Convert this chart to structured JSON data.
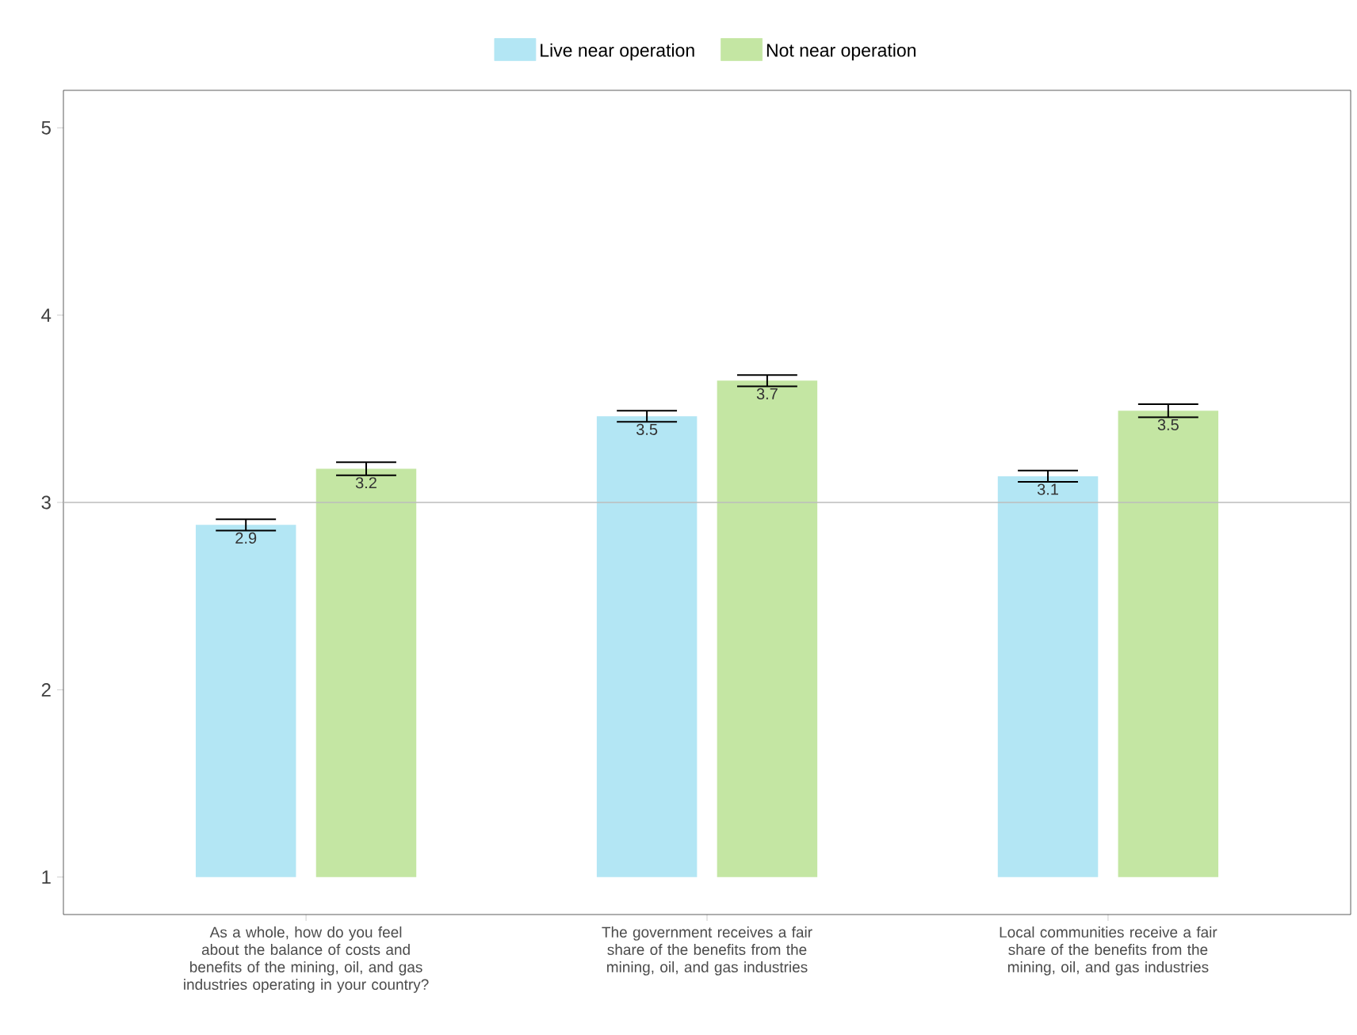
{
  "chart_data": {
    "type": "bar",
    "categories": [
      "As a whole, how do you feel about the balance of costs and benefits of the mining, oil, and gas industries operating in your country?",
      "The government receives a fair share of the benefits from the mining, oil, and gas industries",
      "Local communities receive a fair share of the benefits from the mining, oil, and gas industries"
    ],
    "series": [
      {
        "name": "Live near operation",
        "color": "#b3e6f4",
        "base": [
          1,
          1,
          1
        ],
        "values": [
          1.88,
          2.46,
          2.14
        ],
        "errors": [
          0.03,
          0.03,
          0.03
        ],
        "value_labels": [
          "2.9",
          "3.5",
          "3.1"
        ]
      },
      {
        "name": "Not near operation",
        "color": "#c4e6a3",
        "base": [
          1,
          1,
          1
        ],
        "values": [
          2.18,
          2.65,
          2.49
        ],
        "errors": [
          0.035,
          0.03,
          0.035
        ],
        "value_labels": [
          "3.2",
          "3.7",
          "3.5"
        ]
      }
    ],
    "ylim": [
      0.8,
      5.2
    ],
    "yticks": [
      1,
      2,
      3,
      4,
      5
    ],
    "ref_lines": [
      {
        "axis": "y",
        "value": 3,
        "color": "#bdbdbd"
      }
    ],
    "legend": "top",
    "grid": false
  }
}
